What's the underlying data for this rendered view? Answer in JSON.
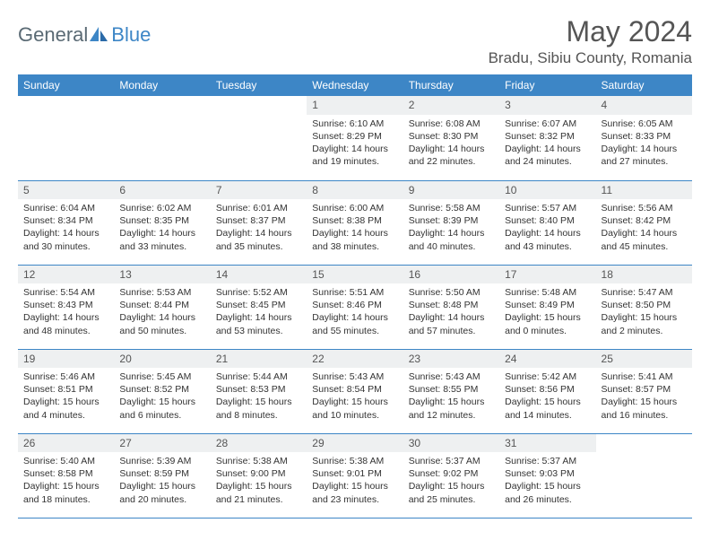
{
  "logo": {
    "general": "General",
    "blue": "Blue"
  },
  "title": "May 2024",
  "location": "Bradu, Sibiu County, Romania",
  "weekdays": [
    "Sunday",
    "Monday",
    "Tuesday",
    "Wednesday",
    "Thursday",
    "Friday",
    "Saturday"
  ],
  "colors": {
    "header_bg": "#3d86c6",
    "header_text": "#ffffff",
    "daynum_bg": "#eef0f1",
    "border": "#3d86c6",
    "title_color": "#555555",
    "logo_gray": "#5a6a74",
    "logo_blue": "#3d86c6"
  },
  "weeks": [
    [
      {
        "n": "",
        "sr": "",
        "ss": "",
        "dl": ""
      },
      {
        "n": "",
        "sr": "",
        "ss": "",
        "dl": ""
      },
      {
        "n": "",
        "sr": "",
        "ss": "",
        "dl": ""
      },
      {
        "n": "1",
        "sr": "Sunrise: 6:10 AM",
        "ss": "Sunset: 8:29 PM",
        "dl": "Daylight: 14 hours and 19 minutes."
      },
      {
        "n": "2",
        "sr": "Sunrise: 6:08 AM",
        "ss": "Sunset: 8:30 PM",
        "dl": "Daylight: 14 hours and 22 minutes."
      },
      {
        "n": "3",
        "sr": "Sunrise: 6:07 AM",
        "ss": "Sunset: 8:32 PM",
        "dl": "Daylight: 14 hours and 24 minutes."
      },
      {
        "n": "4",
        "sr": "Sunrise: 6:05 AM",
        "ss": "Sunset: 8:33 PM",
        "dl": "Daylight: 14 hours and 27 minutes."
      }
    ],
    [
      {
        "n": "5",
        "sr": "Sunrise: 6:04 AM",
        "ss": "Sunset: 8:34 PM",
        "dl": "Daylight: 14 hours and 30 minutes."
      },
      {
        "n": "6",
        "sr": "Sunrise: 6:02 AM",
        "ss": "Sunset: 8:35 PM",
        "dl": "Daylight: 14 hours and 33 minutes."
      },
      {
        "n": "7",
        "sr": "Sunrise: 6:01 AM",
        "ss": "Sunset: 8:37 PM",
        "dl": "Daylight: 14 hours and 35 minutes."
      },
      {
        "n": "8",
        "sr": "Sunrise: 6:00 AM",
        "ss": "Sunset: 8:38 PM",
        "dl": "Daylight: 14 hours and 38 minutes."
      },
      {
        "n": "9",
        "sr": "Sunrise: 5:58 AM",
        "ss": "Sunset: 8:39 PM",
        "dl": "Daylight: 14 hours and 40 minutes."
      },
      {
        "n": "10",
        "sr": "Sunrise: 5:57 AM",
        "ss": "Sunset: 8:40 PM",
        "dl": "Daylight: 14 hours and 43 minutes."
      },
      {
        "n": "11",
        "sr": "Sunrise: 5:56 AM",
        "ss": "Sunset: 8:42 PM",
        "dl": "Daylight: 14 hours and 45 minutes."
      }
    ],
    [
      {
        "n": "12",
        "sr": "Sunrise: 5:54 AM",
        "ss": "Sunset: 8:43 PM",
        "dl": "Daylight: 14 hours and 48 minutes."
      },
      {
        "n": "13",
        "sr": "Sunrise: 5:53 AM",
        "ss": "Sunset: 8:44 PM",
        "dl": "Daylight: 14 hours and 50 minutes."
      },
      {
        "n": "14",
        "sr": "Sunrise: 5:52 AM",
        "ss": "Sunset: 8:45 PM",
        "dl": "Daylight: 14 hours and 53 minutes."
      },
      {
        "n": "15",
        "sr": "Sunrise: 5:51 AM",
        "ss": "Sunset: 8:46 PM",
        "dl": "Daylight: 14 hours and 55 minutes."
      },
      {
        "n": "16",
        "sr": "Sunrise: 5:50 AM",
        "ss": "Sunset: 8:48 PM",
        "dl": "Daylight: 14 hours and 57 minutes."
      },
      {
        "n": "17",
        "sr": "Sunrise: 5:48 AM",
        "ss": "Sunset: 8:49 PM",
        "dl": "Daylight: 15 hours and 0 minutes."
      },
      {
        "n": "18",
        "sr": "Sunrise: 5:47 AM",
        "ss": "Sunset: 8:50 PM",
        "dl": "Daylight: 15 hours and 2 minutes."
      }
    ],
    [
      {
        "n": "19",
        "sr": "Sunrise: 5:46 AM",
        "ss": "Sunset: 8:51 PM",
        "dl": "Daylight: 15 hours and 4 minutes."
      },
      {
        "n": "20",
        "sr": "Sunrise: 5:45 AM",
        "ss": "Sunset: 8:52 PM",
        "dl": "Daylight: 15 hours and 6 minutes."
      },
      {
        "n": "21",
        "sr": "Sunrise: 5:44 AM",
        "ss": "Sunset: 8:53 PM",
        "dl": "Daylight: 15 hours and 8 minutes."
      },
      {
        "n": "22",
        "sr": "Sunrise: 5:43 AM",
        "ss": "Sunset: 8:54 PM",
        "dl": "Daylight: 15 hours and 10 minutes."
      },
      {
        "n": "23",
        "sr": "Sunrise: 5:43 AM",
        "ss": "Sunset: 8:55 PM",
        "dl": "Daylight: 15 hours and 12 minutes."
      },
      {
        "n": "24",
        "sr": "Sunrise: 5:42 AM",
        "ss": "Sunset: 8:56 PM",
        "dl": "Daylight: 15 hours and 14 minutes."
      },
      {
        "n": "25",
        "sr": "Sunrise: 5:41 AM",
        "ss": "Sunset: 8:57 PM",
        "dl": "Daylight: 15 hours and 16 minutes."
      }
    ],
    [
      {
        "n": "26",
        "sr": "Sunrise: 5:40 AM",
        "ss": "Sunset: 8:58 PM",
        "dl": "Daylight: 15 hours and 18 minutes."
      },
      {
        "n": "27",
        "sr": "Sunrise: 5:39 AM",
        "ss": "Sunset: 8:59 PM",
        "dl": "Daylight: 15 hours and 20 minutes."
      },
      {
        "n": "28",
        "sr": "Sunrise: 5:38 AM",
        "ss": "Sunset: 9:00 PM",
        "dl": "Daylight: 15 hours and 21 minutes."
      },
      {
        "n": "29",
        "sr": "Sunrise: 5:38 AM",
        "ss": "Sunset: 9:01 PM",
        "dl": "Daylight: 15 hours and 23 minutes."
      },
      {
        "n": "30",
        "sr": "Sunrise: 5:37 AM",
        "ss": "Sunset: 9:02 PM",
        "dl": "Daylight: 15 hours and 25 minutes."
      },
      {
        "n": "31",
        "sr": "Sunrise: 5:37 AM",
        "ss": "Sunset: 9:03 PM",
        "dl": "Daylight: 15 hours and 26 minutes."
      },
      {
        "n": "",
        "sr": "",
        "ss": "",
        "dl": ""
      }
    ]
  ]
}
